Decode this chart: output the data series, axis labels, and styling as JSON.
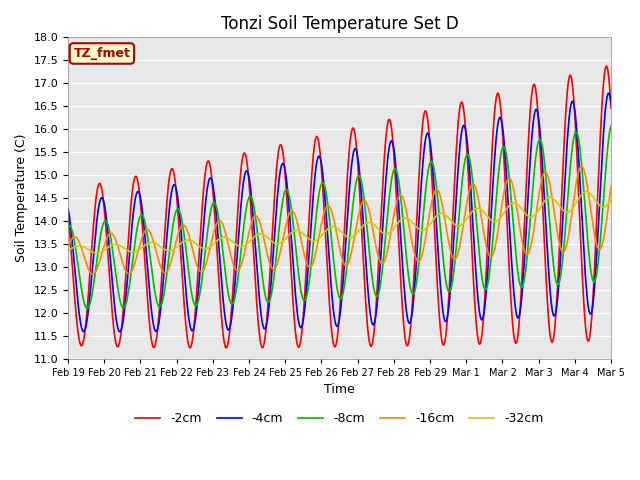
{
  "title": "Tonzi Soil Temperature Set D",
  "xlabel": "Time",
  "ylabel": "Soil Temperature (C)",
  "ylim": [
    11.0,
    18.0
  ],
  "yticks": [
    11.0,
    11.5,
    12.0,
    12.5,
    13.0,
    13.5,
    14.0,
    14.5,
    15.0,
    15.5,
    16.0,
    16.5,
    17.0,
    17.5,
    18.0
  ],
  "xtick_labels": [
    "Feb 19",
    "Feb 20",
    "Feb 21",
    "Feb 22",
    "Feb 23",
    "Feb 24",
    "Feb 25",
    "Feb 26",
    "Feb 27",
    "Feb 28",
    "Feb 29",
    "Mar 1",
    "Mar 2",
    "Mar 3",
    "Mar 4",
    "Mar 5"
  ],
  "legend_label": "TZ_fmet",
  "series_colors": [
    "#FF0000",
    "#0000FF",
    "#00BB00",
    "#FF8800",
    "#CCCC00"
  ],
  "series_names": [
    "-2cm",
    "-4cm",
    "-8cm",
    "-16cm",
    "-32cm"
  ],
  "lw": 1.2,
  "bg_color": "#E8E8E8",
  "fig_color": "#FFFFFF"
}
